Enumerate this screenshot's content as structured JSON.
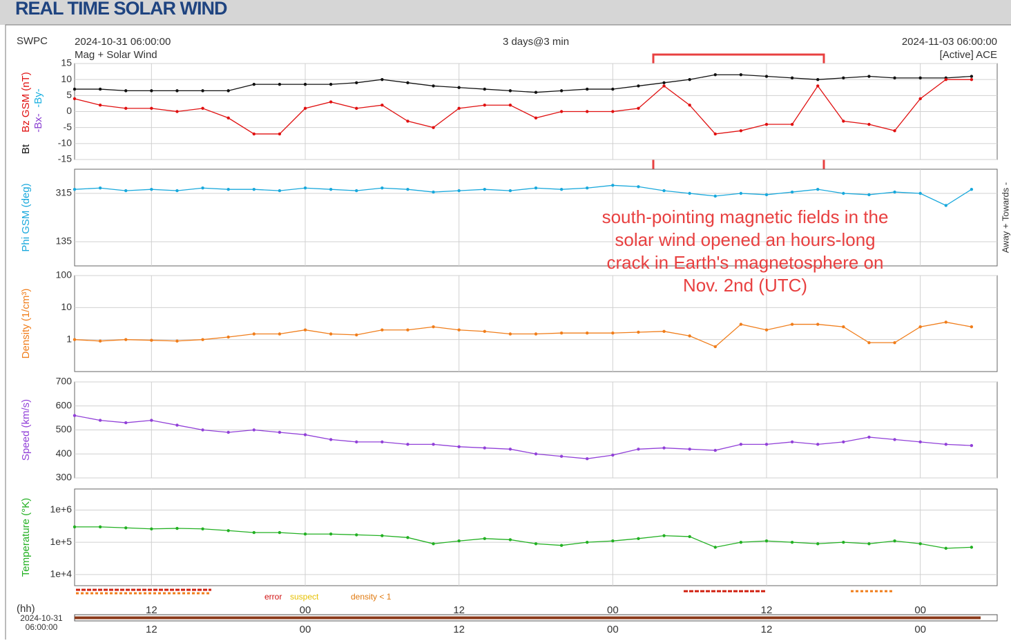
{
  "header": {
    "title": "REAL TIME SOLAR WIND",
    "source": "SWPC",
    "start": "2024-10-31 06:00:00",
    "subtitle": "Mag + Solar Wind",
    "span": "3 days@3 min",
    "end": "2024-11-03 06:00:00",
    "instrument": "[Active] ACE"
  },
  "annotation": [
    "south-pointing magnetic fields in the",
    "solar wind opened an hours-long",
    "crack in Earth's magnetosphere on",
    "Nov. 2nd (UTC)"
  ],
  "flags": {
    "error": "error",
    "suspect": "suspect",
    "density": "density < 1"
  },
  "footer": {
    "unit": "(hh)",
    "date": "2024-10-31",
    "time": "06:00:00"
  },
  "chart_data": [
    {
      "type": "line",
      "ylabel_extra": [
        {
          "text": "-Bx-",
          "color": "#8a3fd1"
        },
        {
          "text": "-By-",
          "color": "#1ab0e0"
        }
      ],
      "x": [
        0,
        2,
        4,
        6,
        8,
        10,
        12,
        14,
        16,
        18,
        20,
        22,
        24,
        26,
        28,
        30,
        32,
        34,
        36,
        38,
        40,
        42,
        44,
        46,
        48,
        50,
        52,
        54,
        56,
        58,
        60,
        62,
        64,
        66,
        68,
        70
      ],
      "xlim": [
        0,
        72
      ],
      "xticks": [
        {
          "value": 6,
          "label": "12"
        },
        {
          "value": 18,
          "label": "00"
        },
        {
          "value": 30,
          "label": "12"
        },
        {
          "value": 42,
          "label": "00"
        },
        {
          "value": 54,
          "label": "12"
        },
        {
          "value": 66,
          "label": "00"
        }
      ],
      "ylim": [
        -15,
        15
      ],
      "yticks": [
        -15,
        -10,
        -5,
        0,
        5,
        10,
        15
      ],
      "grid": true,
      "series": [
        {
          "name": "Bt",
          "color": "#111111",
          "values": [
            7,
            7,
            6.5,
            6.5,
            6.5,
            6.5,
            6.5,
            8.5,
            8.5,
            8.5,
            8.5,
            9,
            10,
            9,
            8,
            7.5,
            7,
            6.5,
            6,
            6.5,
            7,
            7,
            8,
            9,
            10,
            11.5,
            11.5,
            11,
            10.5,
            10,
            10.5,
            11,
            10.5,
            10.5,
            10.5,
            11
          ]
        },
        {
          "name": "Bz GSM (nT)",
          "color": "#e01010",
          "values": [
            4,
            2,
            1,
            1,
            0,
            1,
            -2,
            -7,
            -7,
            1,
            3,
            1,
            2,
            -3,
            -5,
            1,
            2,
            2,
            -2,
            0,
            0,
            0,
            1,
            8,
            2,
            -7,
            -6,
            -4,
            -4,
            8,
            -3,
            -4,
            -6,
            4,
            10,
            10
          ]
        }
      ]
    },
    {
      "type": "line",
      "ylabel": "Phi GSM (deg)",
      "right_label": "Away +  Towards -",
      "x": [
        0,
        2,
        4,
        6,
        8,
        10,
        12,
        14,
        16,
        18,
        20,
        22,
        24,
        26,
        28,
        30,
        32,
        34,
        36,
        38,
        40,
        42,
        44,
        46,
        48,
        50,
        52,
        54,
        56,
        58,
        60,
        62,
        64,
        66,
        68,
        70
      ],
      "xlim": [
        0,
        72
      ],
      "xticks": [
        {
          "value": 6,
          "label": "12"
        },
        {
          "value": 18,
          "label": "00"
        },
        {
          "value": 30,
          "label": "12"
        },
        {
          "value": 42,
          "label": "00"
        },
        {
          "value": 54,
          "label": "12"
        },
        {
          "value": 66,
          "label": "00"
        }
      ],
      "ylim": [
        45,
        405
      ],
      "yticks": [
        135,
        315
      ],
      "grid": true,
      "series": [
        {
          "name": "Phi GSM (deg)",
          "color": "#18a8dc",
          "values": [
            330,
            335,
            325,
            330,
            325,
            335,
            330,
            330,
            325,
            335,
            330,
            325,
            335,
            330,
            320,
            325,
            330,
            325,
            335,
            330,
            335,
            345,
            340,
            325,
            315,
            305,
            315,
            310,
            320,
            330,
            315,
            310,
            320,
            315,
            270,
            330
          ]
        }
      ]
    },
    {
      "type": "line",
      "ylabel": "Density (1/cm³)",
      "log": true,
      "x": [
        0,
        2,
        4,
        6,
        8,
        10,
        12,
        14,
        16,
        18,
        20,
        22,
        24,
        26,
        28,
        30,
        32,
        34,
        36,
        38,
        40,
        42,
        44,
        46,
        48,
        50,
        52,
        54,
        56,
        58,
        60,
        62,
        64,
        66,
        68,
        70
      ],
      "xlim": [
        0,
        72
      ],
      "xticks": [
        {
          "value": 6,
          "label": "12"
        },
        {
          "value": 18,
          "label": "00"
        },
        {
          "value": 30,
          "label": "12"
        },
        {
          "value": 42,
          "label": "00"
        },
        {
          "value": 54,
          "label": "12"
        },
        {
          "value": 66,
          "label": "00"
        }
      ],
      "ylim": [
        0.1,
        100
      ],
      "yticks": [
        1,
        10,
        100
      ],
      "grid": true,
      "series": [
        {
          "name": "Density (1/cm³)",
          "color": "#f07d1a",
          "values": [
            1,
            0.9,
            1,
            0.95,
            0.9,
            1,
            1.2,
            1.5,
            1.5,
            2,
            1.5,
            1.4,
            2,
            2,
            2.5,
            2,
            1.8,
            1.5,
            1.5,
            1.6,
            1.6,
            1.6,
            1.7,
            1.8,
            1.3,
            0.6,
            3,
            2,
            3,
            3,
            2.5,
            0.8,
            0.8,
            2.5,
            3.5,
            2.5
          ]
        }
      ]
    },
    {
      "type": "line",
      "ylabel": "Speed (km/s)",
      "x": [
        0,
        2,
        4,
        6,
        8,
        10,
        12,
        14,
        16,
        18,
        20,
        22,
        24,
        26,
        28,
        30,
        32,
        34,
        36,
        38,
        40,
        42,
        44,
        46,
        48,
        50,
        52,
        54,
        56,
        58,
        60,
        62,
        64,
        66,
        68,
        70
      ],
      "xlim": [
        0,
        72
      ],
      "xticks": [
        {
          "value": 6,
          "label": "12"
        },
        {
          "value": 18,
          "label": "00"
        },
        {
          "value": 30,
          "label": "12"
        },
        {
          "value": 42,
          "label": "00"
        },
        {
          "value": 54,
          "label": "12"
        },
        {
          "value": 66,
          "label": "00"
        }
      ],
      "ylim": [
        300,
        700
      ],
      "yticks": [
        300,
        400,
        500,
        600,
        700
      ],
      "grid": true,
      "series": [
        {
          "name": "Speed (km/s)",
          "color": "#9140d8",
          "values": [
            560,
            540,
            530,
            540,
            520,
            500,
            490,
            500,
            490,
            480,
            460,
            450,
            450,
            440,
            440,
            430,
            425,
            420,
            400,
            390,
            380,
            395,
            420,
            425,
            420,
            415,
            440,
            440,
            450,
            440,
            450,
            470,
            460,
            450,
            440,
            435
          ]
        }
      ]
    },
    {
      "type": "line",
      "ylabel": "Temperature (°K)",
      "log": true,
      "x": [
        0,
        2,
        4,
        6,
        8,
        10,
        12,
        14,
        16,
        18,
        20,
        22,
        24,
        26,
        28,
        30,
        32,
        34,
        36,
        38,
        40,
        42,
        44,
        46,
        48,
        50,
        52,
        54,
        56,
        58,
        60,
        62,
        64,
        66,
        68,
        70
      ],
      "xlim": [
        0,
        72
      ],
      "xticks": [
        {
          "value": 6,
          "label": "12"
        },
        {
          "value": 18,
          "label": "00"
        },
        {
          "value": 30,
          "label": "12"
        },
        {
          "value": 42,
          "label": "00"
        },
        {
          "value": 54,
          "label": "12"
        },
        {
          "value": 66,
          "label": "00"
        }
      ],
      "ylim": [
        4500,
        4500000
      ],
      "yticks": [
        {
          "value": 10000,
          "label": "1e+4"
        },
        {
          "value": 100000,
          "label": "1e+5"
        },
        {
          "value": 1000000,
          "label": "1e+6"
        }
      ],
      "grid": true,
      "series": [
        {
          "name": "Temperature (°K)",
          "color": "#22b022",
          "values": [
            300000,
            300000,
            280000,
            260000,
            270000,
            260000,
            230000,
            200000,
            200000,
            180000,
            180000,
            170000,
            160000,
            140000,
            90000,
            110000,
            130000,
            120000,
            90000,
            80000,
            100000,
            110000,
            130000,
            160000,
            150000,
            70000,
            100000,
            110000,
            100000,
            90000,
            100000,
            90000,
            110000,
            90000,
            65000,
            70000
          ]
        }
      ]
    }
  ]
}
